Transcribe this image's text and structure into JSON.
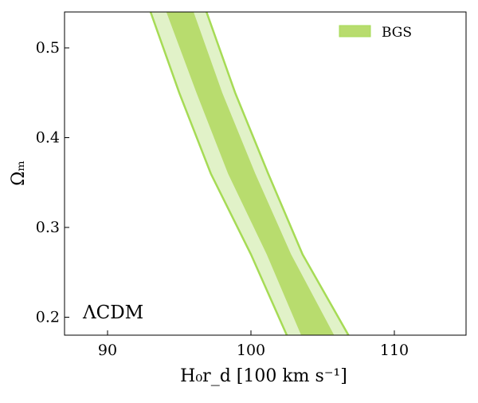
{
  "chart_data": {
    "type": "area",
    "xlabel": "H₀r_d [100 km s⁻¹]",
    "ylabel": "Ωₘ",
    "xlim": [
      87,
      115
    ],
    "ylim": [
      0.18,
      0.54
    ],
    "x_ticks": [
      90,
      100,
      110
    ],
    "y_ticks": [
      0.2,
      0.3,
      0.4,
      0.5
    ],
    "x_tick_labels": [
      "90",
      "100",
      "110"
    ],
    "y_tick_labels": [
      "0.2",
      "0.3",
      "0.4",
      "0.5"
    ],
    "grid": false,
    "legend_position": "top-right",
    "annotation": "ΛCDM",
    "series": [
      {
        "name": "BGS",
        "color": "#b8dc6e",
        "outer_color": "#e1f2c8",
        "edge_color": "#a6db55",
        "contour_95": {
          "left": [
            [
              93.0,
              0.54
            ],
            [
              95.0,
              0.45
            ],
            [
              97.2,
              0.36
            ],
            [
              100.0,
              0.27
            ],
            [
              102.5,
              0.18
            ]
          ],
          "right": [
            [
              96.9,
              0.54
            ],
            [
              98.9,
              0.45
            ],
            [
              101.2,
              0.36
            ],
            [
              103.6,
              0.27
            ],
            [
              106.8,
              0.18
            ]
          ]
        },
        "contour_68": {
          "left": [
            [
              94.1,
              0.54
            ],
            [
              96.2,
              0.45
            ],
            [
              98.4,
              0.36
            ],
            [
              101.1,
              0.27
            ],
            [
              103.5,
              0.18
            ]
          ],
          "right": [
            [
              96.0,
              0.54
            ],
            [
              98.0,
              0.45
            ],
            [
              100.3,
              0.36
            ],
            [
              102.8,
              0.27
            ],
            [
              105.8,
              0.18
            ]
          ]
        }
      }
    ]
  }
}
